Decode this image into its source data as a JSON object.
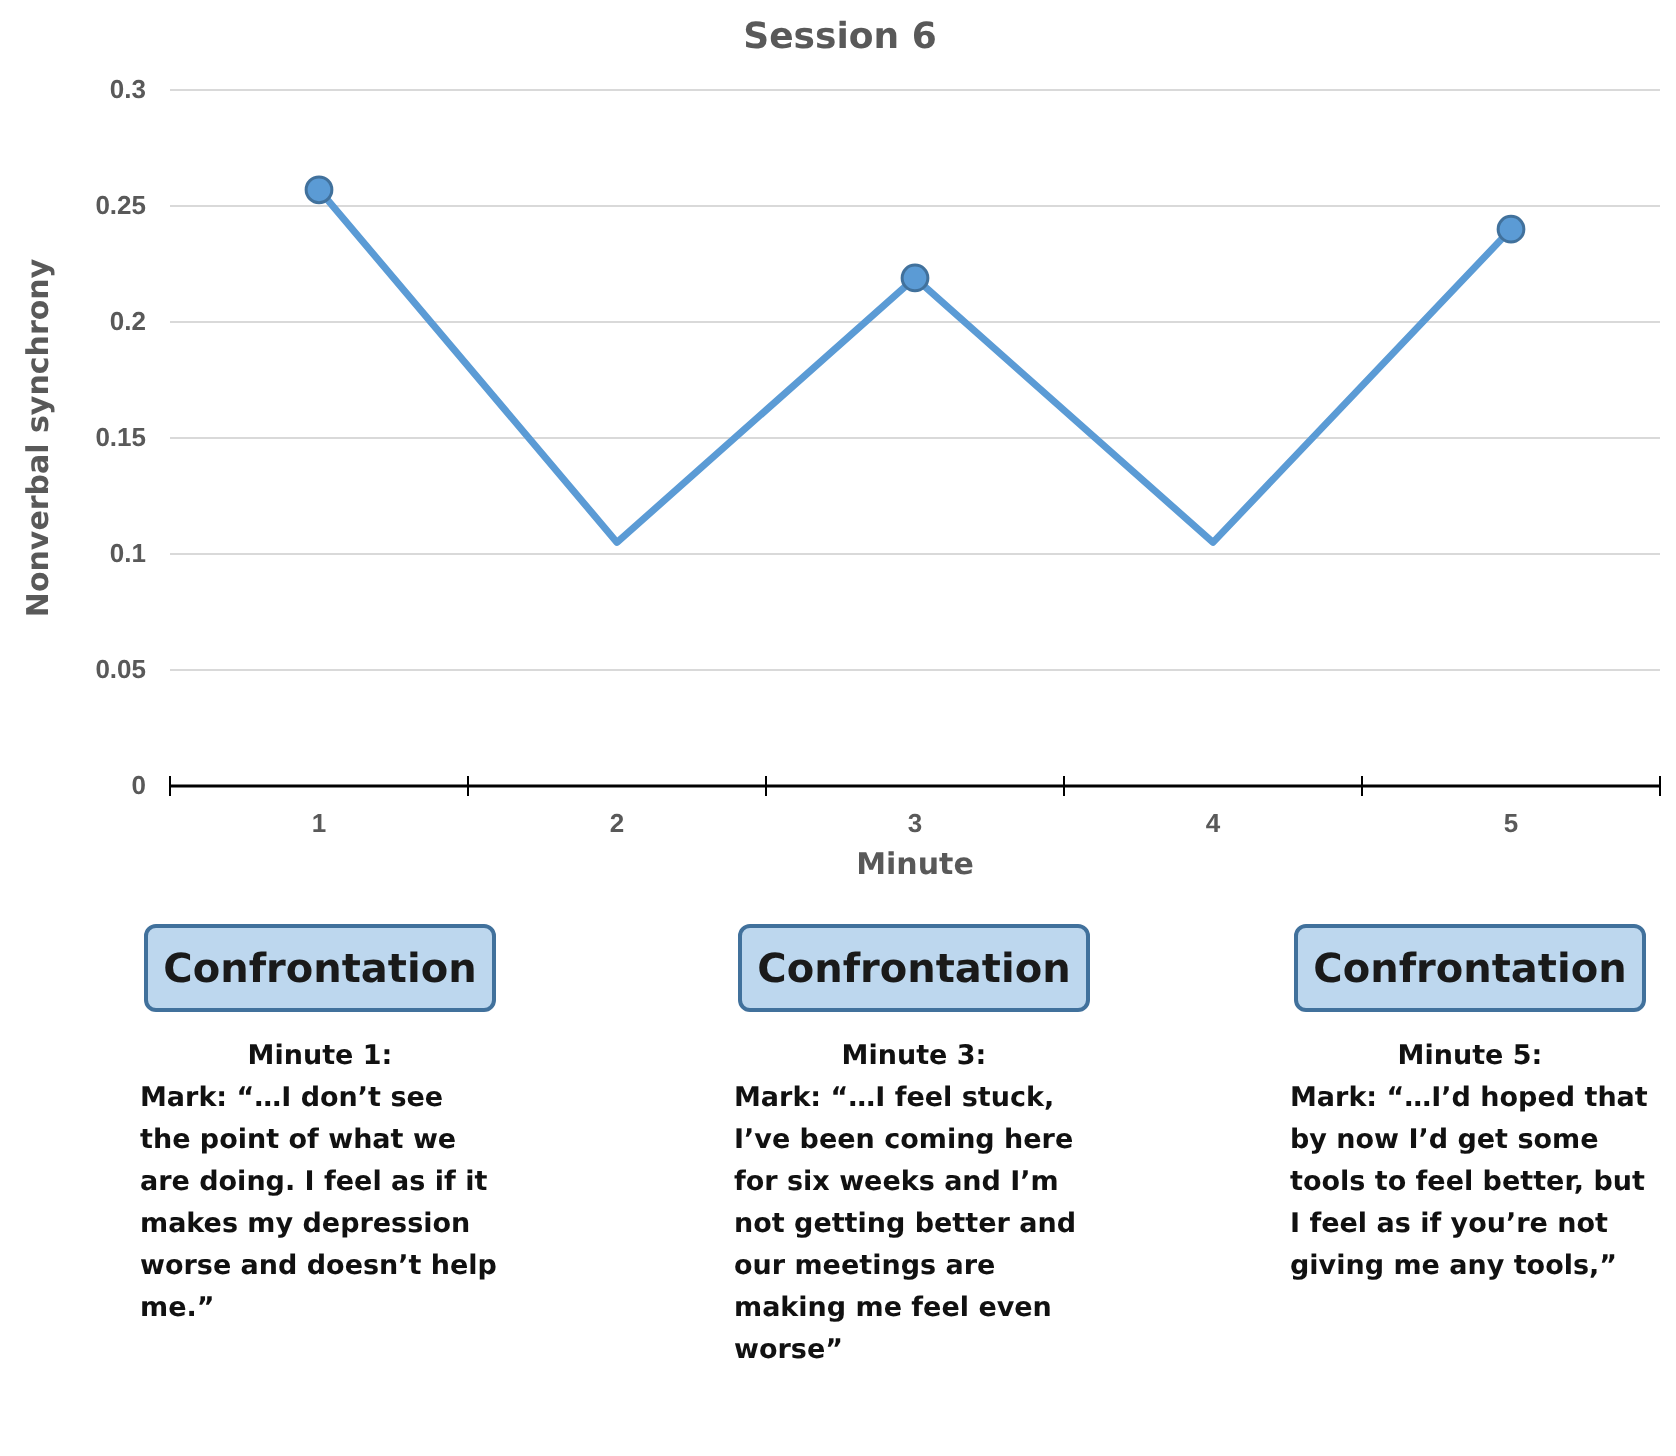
{
  "chart_data": {
    "type": "line",
    "title": "Session 6",
    "xlabel": "Minute",
    "ylabel": "Nonverbal synchrony",
    "categories": [
      "1",
      "2",
      "3",
      "4",
      "5"
    ],
    "series": [
      {
        "color": "#5b9bd5",
        "marker": "none",
        "values": [
          0.257,
          0.105,
          0.219,
          0.105,
          0.24
        ]
      },
      {
        "type": "scatter",
        "color": "#5b9bd5",
        "marker": "circle",
        "x": [
          "1",
          "3",
          "5"
        ],
        "values": [
          0.257,
          0.219,
          0.24
        ]
      }
    ],
    "ylim": [
      0,
      0.3
    ],
    "yticks": [
      0,
      0.05,
      0.1,
      0.15,
      0.2,
      0.25,
      0.3
    ],
    "grid": "y",
    "annotations": [
      "Confrontation",
      "Confrontation",
      "Confrontation",
      "Minute 1:\nMark: “…I don’t see the point of what we are doing. I feel as if it makes my depression worse and doesn’t help me.”",
      "Minute 3:\nMark: “…I feel stuck, I’ve been coming here for six weeks and I’m not getting better and our meetings are making me feel even worse”",
      "Minute 5:\nMark: “…I’d hoped that by now I’d get some tools to feel better, but I feel as if you’re not giving me any tools,”"
    ]
  }
}
